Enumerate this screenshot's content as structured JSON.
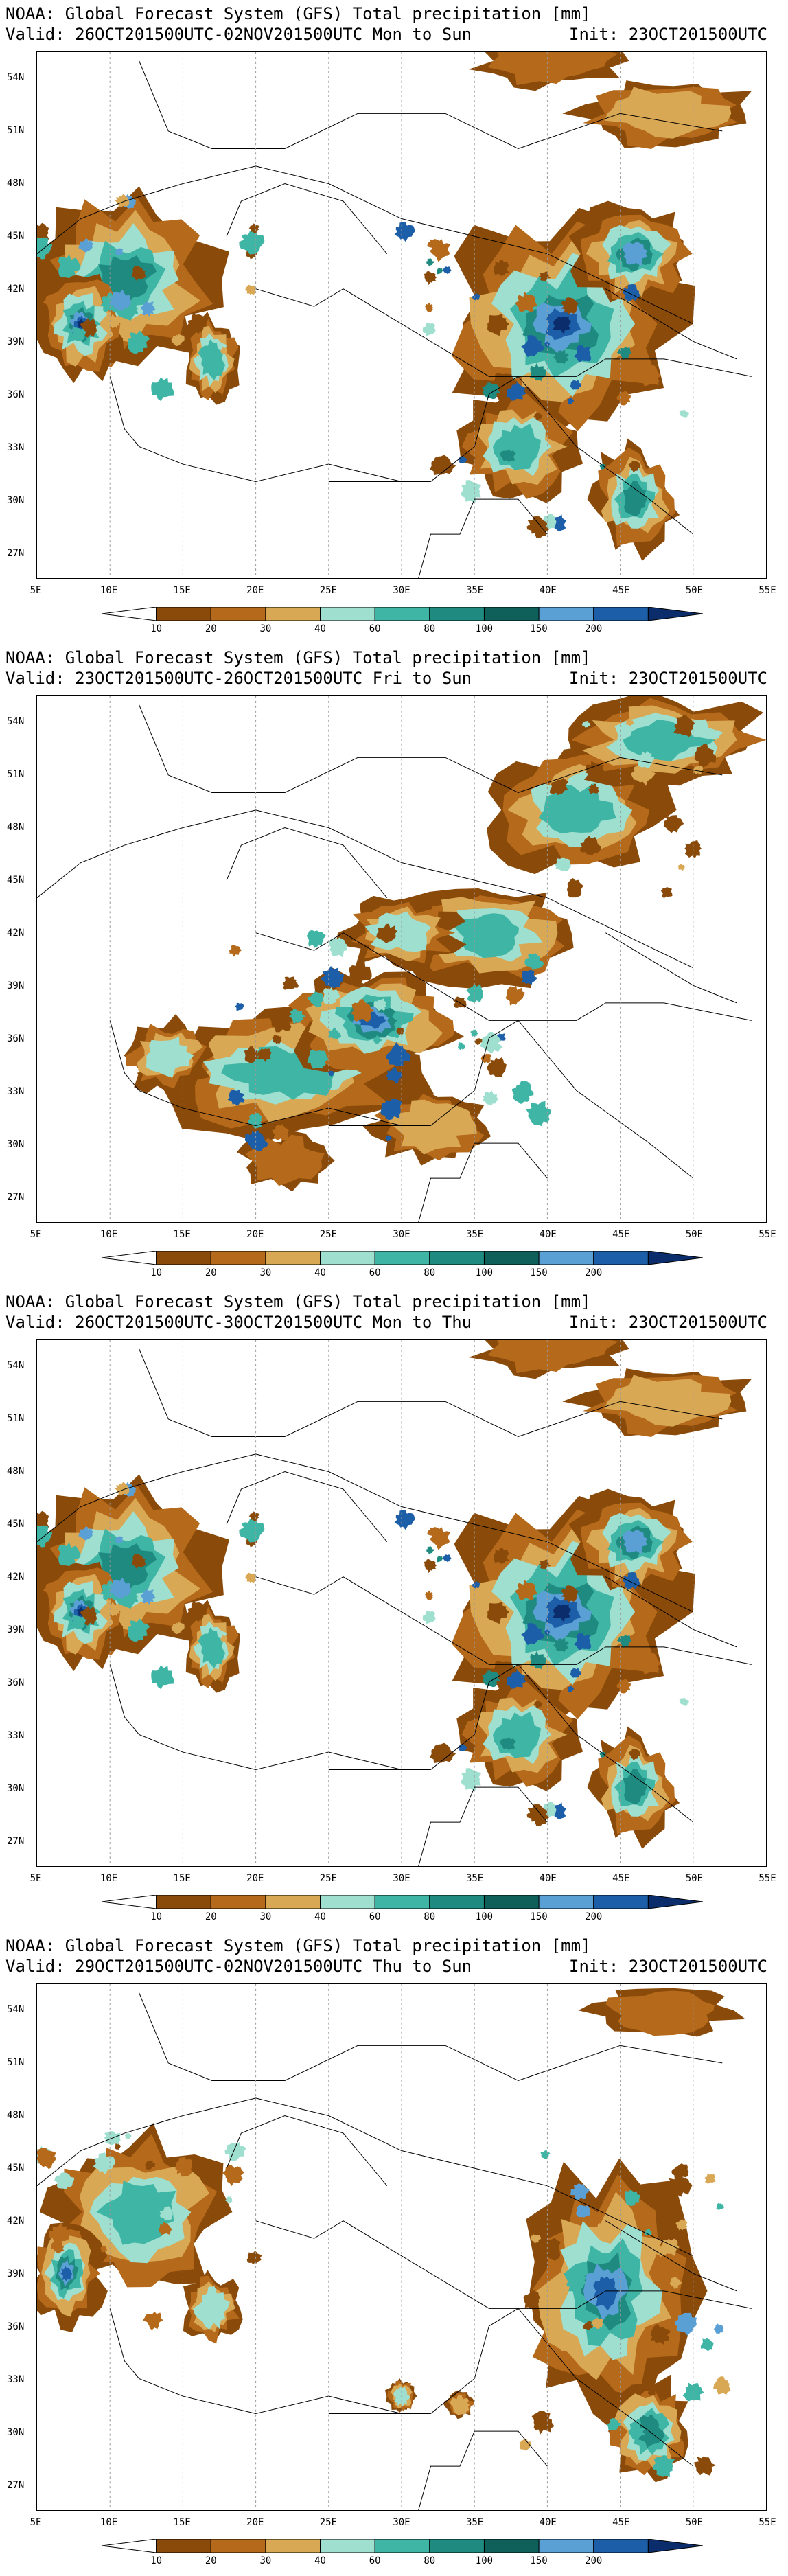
{
  "title_line": "NOAA: Global Forecast System (GFS) Total precipitation [mm]",
  "init_label": "Init: 23OCT201500UTC",
  "lat_labels": [
    "54N",
    "51N",
    "48N",
    "45N",
    "42N",
    "39N",
    "36N",
    "33N",
    "30N",
    "27N"
  ],
  "lon_labels": [
    "5E",
    "10E",
    "15E",
    "20E",
    "25E",
    "30E",
    "35E",
    "40E",
    "45E",
    "50E",
    "55E"
  ],
  "colorbar": {
    "levels": [
      "10",
      "20",
      "30",
      "40",
      "60",
      "80",
      "100",
      "150",
      "200"
    ],
    "colors": [
      "#ffffff",
      "#8a4a0a",
      "#b5691a",
      "#d9a855",
      "#9fdfcf",
      "#3fb5a5",
      "#1f8a80",
      "#0f5f5a",
      "#5aa0d5",
      "#1c5ea8",
      "#0b2d6b"
    ]
  },
  "panels": [
    {
      "valid_line": "Valid: 26OCT201500UTC-02NOV201500UTC Mon to Sun",
      "scene": "west_east_heavy"
    },
    {
      "valid_line": "Valid: 23OCT201500UTC-26OCT201500UTC Fri to Sun",
      "scene": "central_band"
    },
    {
      "valid_line": "Valid: 26OCT201500UTC-30OCT201500UTC Mon to Thu",
      "scene": "west_east_heavy"
    },
    {
      "valid_line": "Valid: 29OCT201500UTC-02NOV201500UTC Thu to Sun",
      "scene": "west_east_light"
    }
  ]
}
